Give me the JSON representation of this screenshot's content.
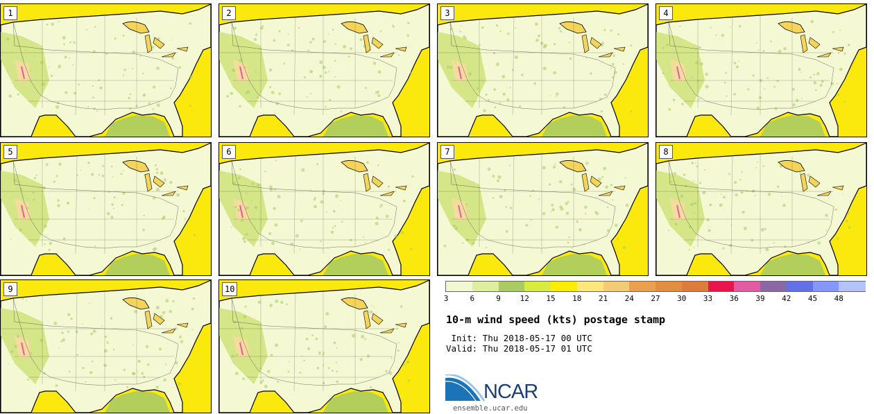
{
  "figure": {
    "title": "10-m wind speed (kts) postage stamp",
    "init": " Init: Thu 2018-05-17 00 UTC",
    "valid": "Valid: Thu 2018-05-17 01 UTC"
  },
  "members": [
    "1",
    "2",
    "3",
    "4",
    "5",
    "6",
    "7",
    "8",
    "9",
    "10"
  ],
  "colorbar": {
    "levels": [
      "3",
      "6",
      "9",
      "12",
      "15",
      "18",
      "21",
      "24",
      "27",
      "30",
      "33",
      "36",
      "39",
      "42",
      "45",
      "48"
    ],
    "colors": [
      "#f2f8d2",
      "#ddef9e",
      "#a8cc63",
      "#d8ec3f",
      "#fcec08",
      "#fbe77a",
      "#f4cb74",
      "#ec9f4c",
      "#e58d3f",
      "#df7b3c",
      "#e8154a",
      "#e25ba3",
      "#8b67a6",
      "#6370e8",
      "#8697fb",
      "#b4c4fb"
    ],
    "extra_labels_nudge": "none"
  },
  "map": {
    "land_color": "#f4f9d4",
    "ocean_color": "#fbe90e",
    "lake_color": "#f5d45a",
    "gulf_inner_color": "#a8cc63"
  },
  "branding": {
    "logo_text": "NCAR",
    "site": "ensemble.ucar.edu"
  }
}
